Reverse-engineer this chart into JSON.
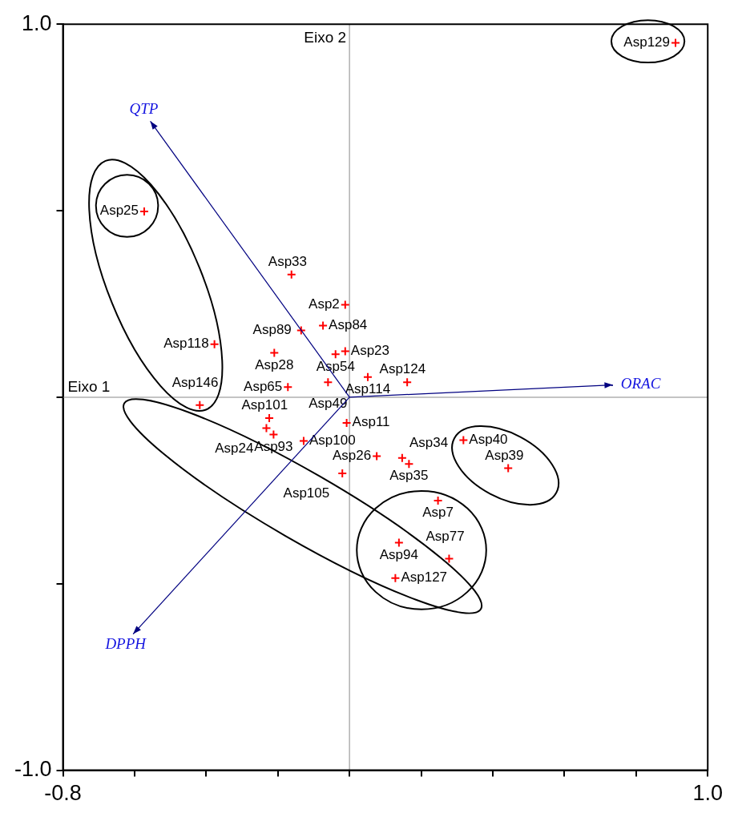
{
  "chart_data": {
    "type": "scatter",
    "xlim": [
      -0.8,
      1.0
    ],
    "ylim": [
      -1.0,
      1.0
    ],
    "xticks": [
      -0.8,
      {
        "value": -0.6,
        "label": null
      },
      {
        "value": -0.4,
        "label": null
      },
      {
        "value": -0.2,
        "label": null
      },
      {
        "value": 0,
        "label": null
      },
      {
        "value": 0.2,
        "label": null
      },
      {
        "value": 0.4,
        "label": null
      },
      {
        "value": 0.6,
        "label": null
      },
      {
        "value": 0.8,
        "label": null
      },
      {
        "value": 1.0,
        "label": "1.0"
      }
    ],
    "yticks": [
      {
        "value": -1.0,
        "label": "-1.0"
      },
      {
        "value": -0.5,
        "label": null
      },
      {
        "value": 0,
        "label": null
      },
      {
        "value": 0.5,
        "label": null
      },
      {
        "value": 1.0,
        "label": "1.0"
      }
    ],
    "marker": "cross",
    "ref_lines": [
      {
        "axis": "x",
        "value": 0,
        "label": "Eixo 2",
        "color": "#b0b0b0"
      },
      {
        "axis": "y",
        "value": 0,
        "label": "Eixo 1",
        "color": "#b0b0b0"
      }
    ],
    "annotations": [
      "QTP",
      "ORAC",
      "DPPH"
    ],
    "series": [
      {
        "color": "#ff0000",
        "x": [
          0.91,
          -0.573,
          -0.162,
          -0.012,
          -0.074,
          -0.135,
          -0.377,
          -0.21,
          -0.039,
          -0.012,
          0.051,
          0.161,
          -0.172,
          -0.06,
          -0.418,
          -0.224,
          -0.232,
          -0.212,
          -0.128,
          -0.008,
          0.076,
          0.147,
          0.166,
          -0.02,
          0.318,
          0.443,
          0.247,
          0.138,
          0.278,
          0.128
        ],
        "values": [
          0.95,
          0.498,
          0.329,
          0.248,
          0.192,
          0.179,
          0.142,
          0.119,
          0.115,
          0.123,
          0.054,
          0.04,
          0.027,
          0.04,
          -0.021,
          -0.056,
          -0.083,
          -0.1,
          -0.117,
          -0.069,
          -0.158,
          -0.163,
          -0.179,
          -0.204,
          -0.115,
          -0.19,
          -0.277,
          -0.39,
          -0.433,
          -0.485
        ],
        "value_labels": [
          "Asp129",
          "Asp25",
          "Asp33",
          "Asp2",
          "Asp84",
          "Asp89",
          "Asp118",
          "Asp28",
          "Asp54",
          "Asp23",
          "Asp114",
          "Asp124",
          "Asp65",
          "Asp49",
          "Asp146",
          "Asp101",
          "Asp24",
          "Asp93",
          "Asp100",
          "Asp11",
          "Asp26",
          "Asp34",
          "Asp35",
          "Asp105",
          "Asp40",
          "Asp39",
          "Asp7",
          "Asp94",
          "Asp77",
          "Asp127"
        ]
      }
    ]
  }
}
